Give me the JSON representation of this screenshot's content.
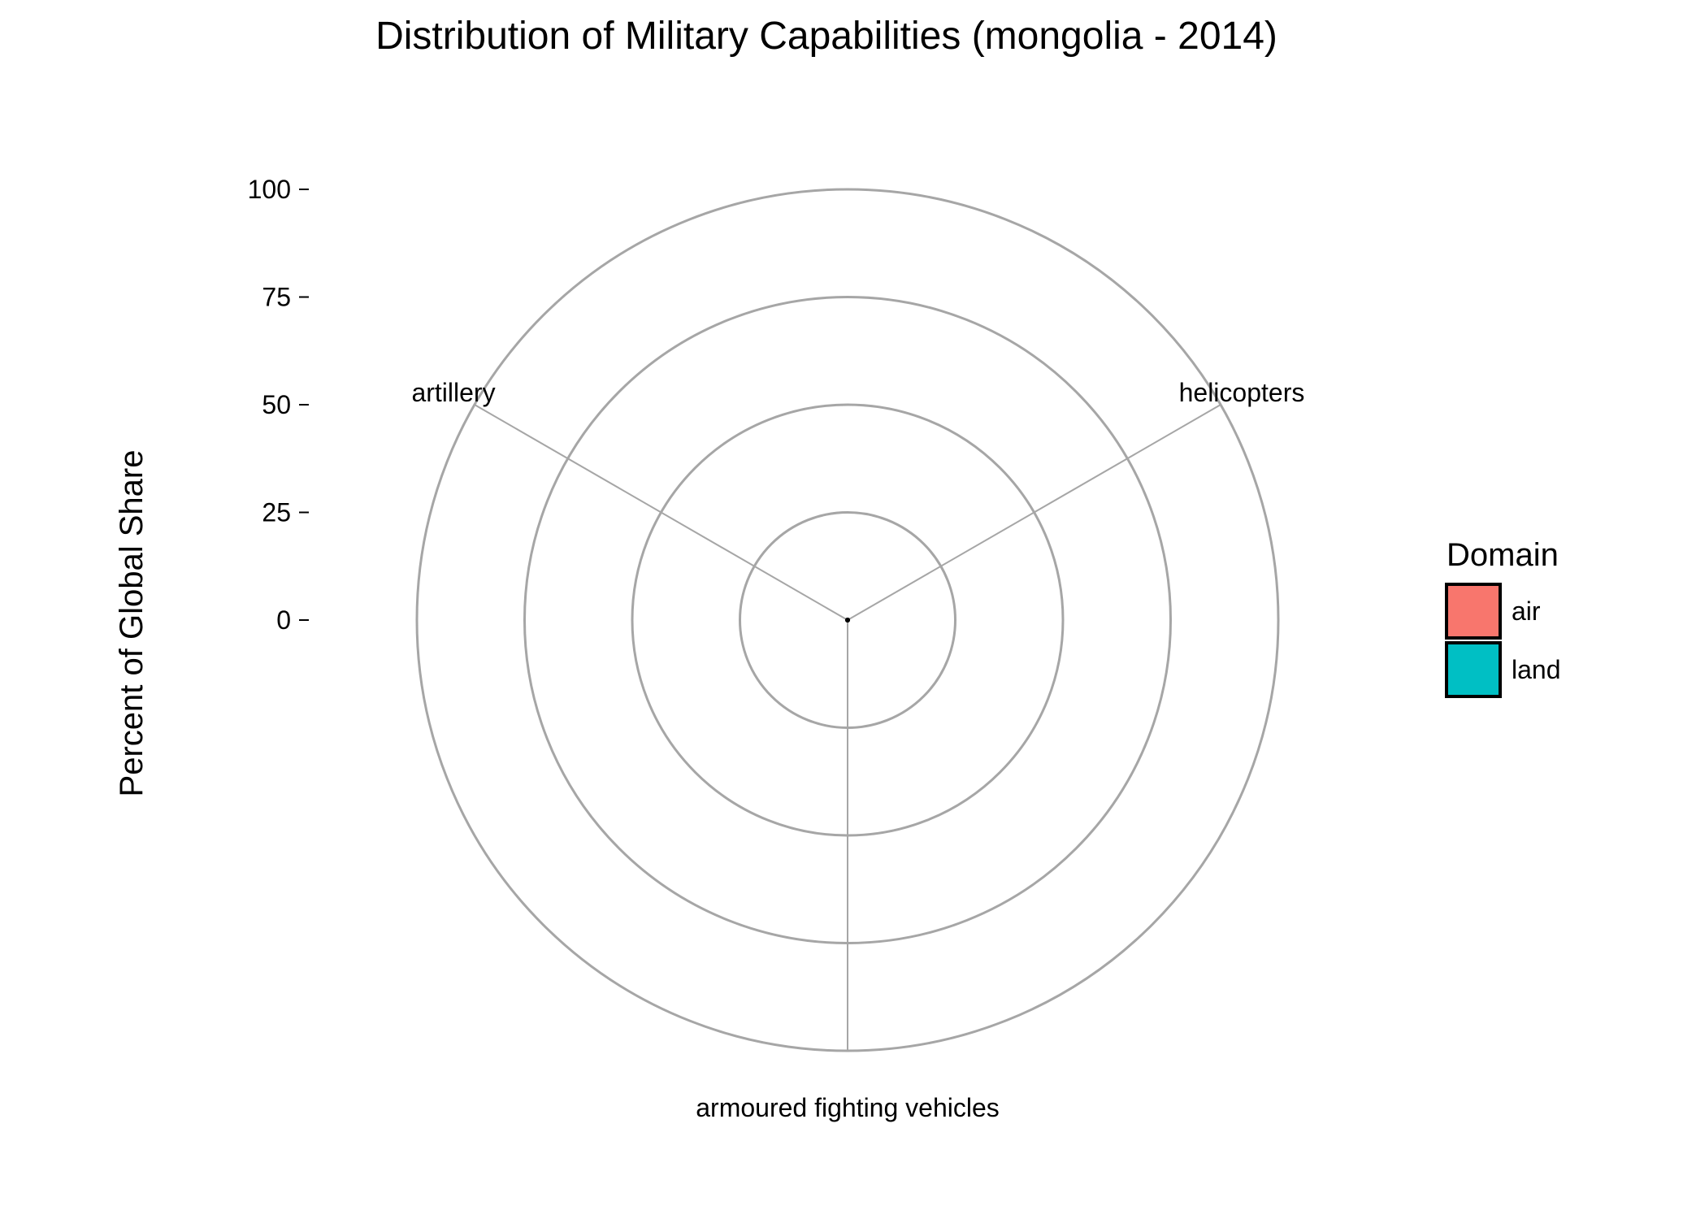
{
  "chart_data": {
    "type": "bar",
    "subtype": "polar",
    "title": "Distribution of Military Capabilities (mongolia - 2014)",
    "ylabel": "Percent of Global Share",
    "xlabel": "",
    "ylim": [
      0,
      100
    ],
    "yticks": [
      0,
      25,
      50,
      75,
      100
    ],
    "ytick_labels": [
      "0",
      "25",
      "50",
      "75",
      "100"
    ],
    "grid": true,
    "categories": [
      "helicopters",
      "armoured fighting vehicles",
      "artillery"
    ],
    "series": [
      {
        "name": "air",
        "color": "#F8766D",
        "values": [
          0,
          null,
          null
        ]
      },
      {
        "name": "land",
        "color": "#00BFC4",
        "values": [
          null,
          0,
          0
        ]
      }
    ],
    "legend": {
      "title": "Domain",
      "position": "right",
      "entries": [
        {
          "label": "air",
          "color": "#F8766D"
        },
        {
          "label": "land",
          "color": "#00BFC4"
        }
      ]
    },
    "colors": {
      "grid": "#A6A6A6",
      "spoke": "#A6A6A6",
      "text": "#000000"
    }
  }
}
